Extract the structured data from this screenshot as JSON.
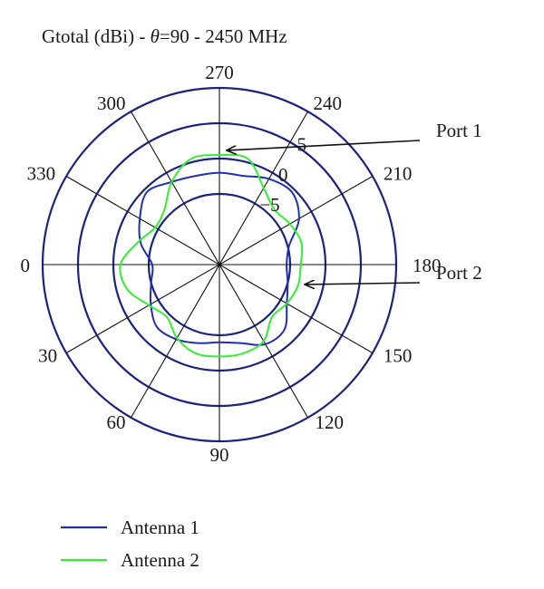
{
  "chart_data": {
    "type": "polar-line",
    "title": "Gtotal (dBi) - θ=90 - 2450 MHz",
    "title_parts": {
      "prefix": "Gtotal (dBi) - ",
      "theta": "θ",
      "suffix": "=90 - 2450 MHz"
    },
    "angle_ticks": [
      "0",
      "30",
      "60",
      "90",
      "120",
      "150",
      "180",
      "210",
      "240",
      "270",
      "300",
      "330"
    ],
    "angle_tick_values": [
      0,
      30,
      60,
      90,
      120,
      150,
      180,
      210,
      240,
      270,
      300,
      330
    ],
    "angle_direction": "0 at left, 90 at bottom, 180 at right, 270 at top",
    "radial_ticks": [
      "−5",
      "0",
      "5"
    ],
    "radial_tick_values": [
      -5,
      0,
      5
    ],
    "radial_range": [
      -15,
      10
    ],
    "grid": true,
    "legend_position": "bottom-left",
    "series": [
      {
        "name": "Antenna 1",
        "color": "#1f2fb0",
        "theta": [
          0,
          15,
          30,
          45,
          60,
          75,
          90,
          105,
          120,
          135,
          150,
          165,
          180,
          195,
          210,
          225,
          240,
          255,
          270,
          285,
          300,
          315,
          330,
          345,
          360
        ],
        "r": [
          -5.5,
          -5.0,
          -3.8,
          -2.5,
          -2.8,
          -3.5,
          -4.0,
          -3.5,
          -2.0,
          -2.0,
          -4.0,
          -5.0,
          -5.5,
          -4.8,
          -2.0,
          -0.5,
          -1.0,
          -2.0,
          -2.0,
          -2.0,
          -1.5,
          -0.5,
          -2.0,
          -3.5,
          -5.5
        ]
      },
      {
        "name": "Antenna 2",
        "color": "#33ee33",
        "theta": [
          0,
          15,
          30,
          45,
          60,
          75,
          90,
          105,
          120,
          135,
          150,
          165,
          180,
          195,
          210,
          225,
          240,
          255,
          270,
          285,
          300,
          315,
          330,
          345,
          360
        ],
        "r": [
          -1.0,
          -1.5,
          -3.5,
          -4.5,
          -3.0,
          -2.0,
          -2.0,
          -2.0,
          -2.5,
          -4.5,
          -4.0,
          -3.5,
          -3.5,
          -3.0,
          -3.5,
          -4.0,
          -2.5,
          0.5,
          0.5,
          0.5,
          -1.5,
          -4.0,
          -4.5,
          -3.0,
          -1.0
        ]
      }
    ],
    "annotations": [
      {
        "text": "Port 1",
        "points_to_theta": 266,
        "points_to_r": 1.2
      },
      {
        "text": "Port 2",
        "points_to_theta": 167,
        "points_to_r": -2.5
      }
    ]
  },
  "legend": {
    "items": [
      {
        "label": "Antenna 1",
        "color": "#1f2fb0"
      },
      {
        "label": "Antenna 2",
        "color": "#33ee33"
      }
    ]
  },
  "colors": {
    "grid_circles": "#1a237e",
    "spokes": "#111111",
    "text": "#1a1a1a"
  }
}
